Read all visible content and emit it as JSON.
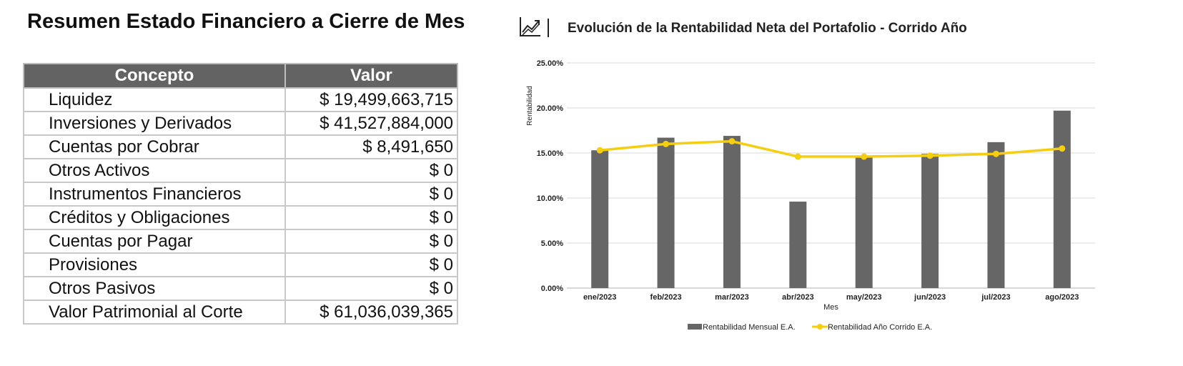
{
  "summary": {
    "title": "Resumen Estado Financiero a Cierre de Mes",
    "headers": {
      "concept": "Concepto",
      "value": "Valor"
    },
    "rows": [
      {
        "concept": "Liquidez",
        "value": "$ 19,499,663,715"
      },
      {
        "concept": "Inversiones y Derivados",
        "value": "$ 41,527,884,000"
      },
      {
        "concept": "Cuentas por Cobrar",
        "value": "$ 8,491,650"
      },
      {
        "concept": "Otros Activos",
        "value": "$ 0"
      },
      {
        "concept": "Instrumentos Financieros",
        "value": "$ 0"
      },
      {
        "concept": "Créditos y Obligaciones",
        "value": "$ 0"
      },
      {
        "concept": "Cuentas por Pagar",
        "value": "$ 0"
      },
      {
        "concept": "Provisiones",
        "value": "$ 0"
      },
      {
        "concept": "Otros Pasivos",
        "value": "$ 0"
      },
      {
        "concept": "Valor Patrimonial al Corte",
        "value": "$ 61,036,039,365"
      }
    ]
  },
  "chart_header": {
    "icon": "trending-up-icon",
    "title": "Evolución de la Rentabilidad Neta del Portafolio - Corrido Año"
  },
  "chart_data": {
    "type": "bar",
    "title": "Evolución de la Rentabilidad Neta del Portafolio - Corrido Año",
    "xlabel": "Mes",
    "ylabel": "Rentabilidad",
    "ylim": [
      0,
      25
    ],
    "y_ticks": [
      "0.00%",
      "5.00%",
      "10.00%",
      "15.00%",
      "20.00%",
      "25.00%"
    ],
    "grid": true,
    "legend_position": "bottom",
    "categories": [
      "ene/2023",
      "feb/2023",
      "mar/2023",
      "abr/2023",
      "may/2023",
      "jun/2023",
      "jul/2023",
      "ago/2023"
    ],
    "series": [
      {
        "name": "Rentabilidad Mensual E.A.",
        "type": "bar",
        "color": "#666666",
        "values": [
          15.3,
          16.7,
          16.9,
          9.6,
          14.6,
          14.9,
          16.2,
          19.7
        ]
      },
      {
        "name": "Rentabilidad Año Corrido E.A.",
        "type": "line",
        "color": "#f5cf0f",
        "values": [
          15.3,
          16.0,
          16.3,
          14.6,
          14.6,
          14.7,
          14.9,
          15.5
        ]
      }
    ]
  }
}
